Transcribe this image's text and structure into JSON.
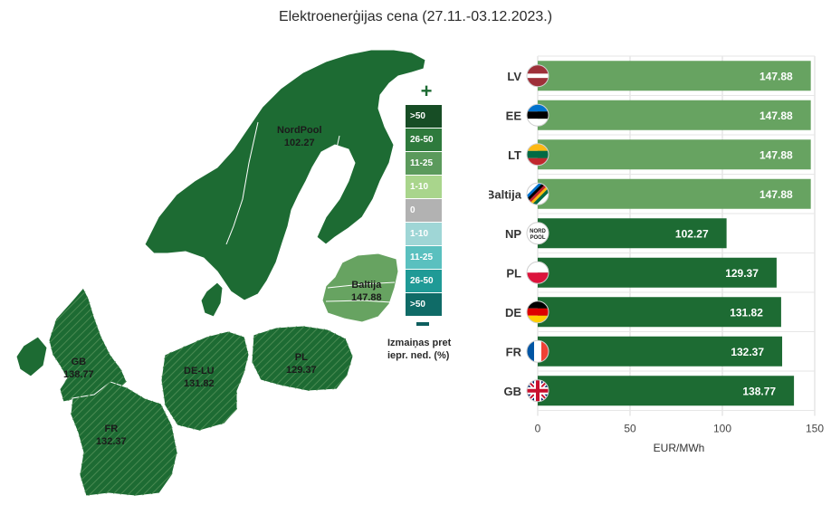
{
  "title": "Elektroenerģijas cena (27.11.-03.12.2023.)",
  "map": {
    "regions": [
      {
        "id": "nordpool",
        "name": "NordPool",
        "value": "102.27"
      },
      {
        "id": "baltija",
        "name": "Baltija",
        "value": "147.88"
      },
      {
        "id": "gb",
        "name": "GB",
        "value": "138.77"
      },
      {
        "id": "de-lu",
        "name": "DE-LU",
        "value": "131.82"
      },
      {
        "id": "pl",
        "name": "PL",
        "value": "129.37"
      },
      {
        "id": "fr",
        "name": "FR",
        "value": "132.37"
      }
    ],
    "colors": {
      "dark_green": "#1d6b33",
      "light_green": "#67a361",
      "sea": "#ffffff"
    }
  },
  "legend": {
    "plus_symbol": "+",
    "minus_symbol": "−",
    "caption": "Izmaiņas pret iepr. ned. (%)",
    "items": [
      {
        "label": ">50",
        "color": "#174d25"
      },
      {
        "label": "26-50",
        "color": "#2e7a3c"
      },
      {
        "label": "11-25",
        "color": "#5b9a5c"
      },
      {
        "label": "1-10",
        "color": "#a9d58c"
      },
      {
        "label": "0",
        "color": "#b2b2b2"
      },
      {
        "label": "1-10",
        "color": "#9fd6d6"
      },
      {
        "label": "11-25",
        "color": "#5ac0bf"
      },
      {
        "label": "26-50",
        "color": "#1f9a96"
      },
      {
        "label": ">50",
        "color": "#0f6b67"
      }
    ]
  },
  "chart_data": {
    "type": "bar",
    "orientation": "horizontal",
    "categories": [
      "LV",
      "EE",
      "LT",
      "Baltija",
      "NP",
      "PL",
      "DE",
      "FR",
      "GB"
    ],
    "values": [
      147.88,
      147.88,
      147.88,
      147.88,
      102.27,
      129.37,
      131.82,
      132.37,
      138.77
    ],
    "value_labels": [
      "147.88",
      "147.88",
      "147.88",
      "147.88",
      "102.27",
      "129.37",
      "131.82",
      "132.37",
      "138.77"
    ],
    "bar_colors": [
      "#67a361",
      "#67a361",
      "#67a361",
      "#67a361",
      "#1d6b33",
      "#1d6b33",
      "#1d6b33",
      "#1d6b33",
      "#1d6b33"
    ],
    "flags": [
      "lv-flag-icon",
      "ee-flag-icon",
      "lt-flag-icon",
      "baltija-flag-icon",
      "nordpool-logo-icon",
      "pl-flag-icon",
      "de-flag-icon",
      "fr-flag-icon",
      "gb-flag-icon"
    ],
    "nordpool_logo_text": "NORD POOL",
    "xlim": [
      0,
      150
    ],
    "xticks": [
      "0",
      "50",
      "100",
      "150"
    ],
    "xlabel": "EUR/MWh",
    "grid": true
  }
}
